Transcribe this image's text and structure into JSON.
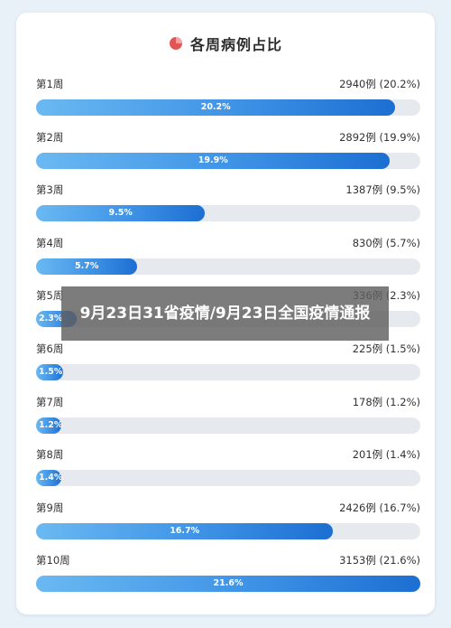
{
  "banner": {
    "headline": "9月23日31省疫情/9月23日全国疫情通报"
  },
  "colors": {
    "bar_gradient_start": "#6ab9f2",
    "bar_gradient_end": "#1c6fd2",
    "track": "#e6e9ee",
    "title_icon": "#e25555"
  },
  "chart_data": {
    "type": "bar",
    "orientation": "horizontal",
    "title": "各周病例占比",
    "title_icon": "pie-chart-icon",
    "unit": "例",
    "xlim": [
      0,
      21.6
    ],
    "rows": [
      {
        "label": "第1周",
        "value_text": "2940例 (20.2%)",
        "cases": 2940,
        "percent": 20.2,
        "bar_label": "20.2%"
      },
      {
        "label": "第2周",
        "value_text": "2892例 (19.9%)",
        "cases": 2892,
        "percent": 19.9,
        "bar_label": "19.9%"
      },
      {
        "label": "第3周",
        "value_text": "1387例 (9.5%)",
        "cases": 1387,
        "percent": 9.5,
        "bar_label": "9.5%"
      },
      {
        "label": "第4周",
        "value_text": "830例 (5.7%)",
        "cases": 830,
        "percent": 5.7,
        "bar_label": "5.7%"
      },
      {
        "label": "第5周",
        "value_text": "336例 (2.3%)",
        "cases": 336,
        "percent": 2.3,
        "bar_label": "2.3%"
      },
      {
        "label": "第6周",
        "value_text": "225例 (1.5%)",
        "cases": 225,
        "percent": 1.5,
        "bar_label": "1.5%"
      },
      {
        "label": "第7周",
        "value_text": "178例 (1.2%)",
        "cases": 178,
        "percent": 1.2,
        "bar_label": "1.2%"
      },
      {
        "label": "第8周",
        "value_text": "201例 (1.4%)",
        "cases": 201,
        "percent": 1.4,
        "bar_label": "1.4%"
      },
      {
        "label": "第9周",
        "value_text": "2426例 (16.7%)",
        "cases": 2426,
        "percent": 16.7,
        "bar_label": "16.7%"
      },
      {
        "label": "第10周",
        "value_text": "3153例 (21.6%)",
        "cases": 3153,
        "percent": 21.6,
        "bar_label": "21.6%"
      }
    ]
  }
}
